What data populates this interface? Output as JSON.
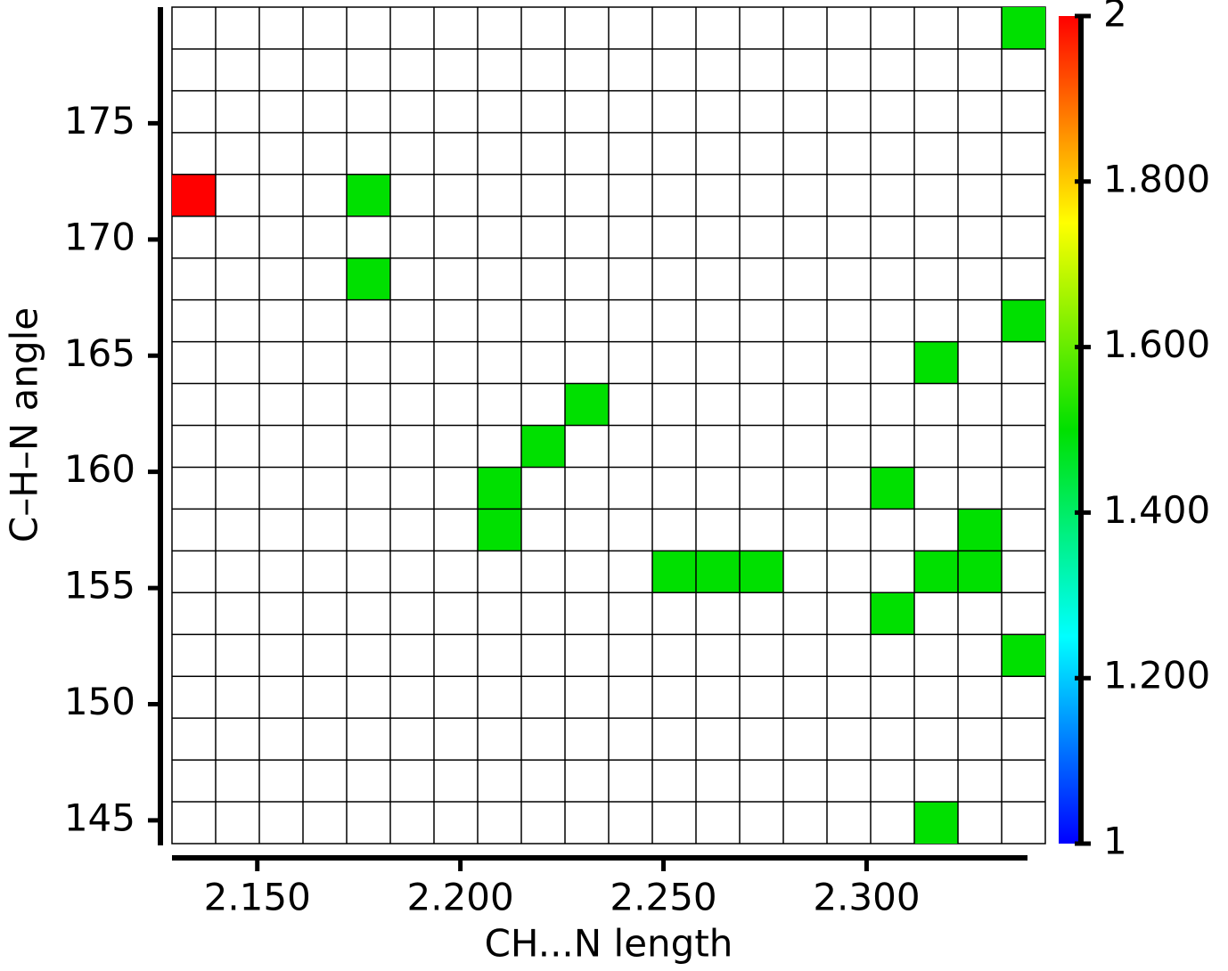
{
  "chart_data": {
    "type": "heatmap2d",
    "x_label": "CH...N length",
    "y_label": "C–H–N angle",
    "xlim": [
      2.129,
      2.344
    ],
    "ylim": [
      144,
      180
    ],
    "bins": [
      20,
      20
    ],
    "xticks": [
      {
        "value": 2.15,
        "label": "2.150"
      },
      {
        "value": 2.2,
        "label": "2.200"
      },
      {
        "value": 2.25,
        "label": "2.250"
      },
      {
        "value": 2.3,
        "label": "2.300"
      }
    ],
    "yticks": [
      145,
      150,
      155,
      160,
      165,
      170,
      175
    ],
    "clim": [
      1,
      2
    ],
    "cticks": [
      1,
      {
        "value": 1.2,
        "label": "1.200"
      },
      {
        "value": 1.4,
        "label": "1.400"
      },
      {
        "value": 1.6,
        "label": "1.600"
      },
      {
        "value": 1.8,
        "label": "1.800"
      },
      2
    ],
    "colorscale": [
      "#0000ff",
      "#00ffff",
      "#00e000",
      "#ffff00",
      "#ff0000"
    ],
    "cells": [
      {
        "x": 2.339,
        "y": 179.1,
        "value": 1.5
      },
      {
        "x": 2.135,
        "y": 171.9,
        "value": 2
      },
      {
        "x": 2.178,
        "y": 171.9,
        "value": 1.5
      },
      {
        "x": 2.178,
        "y": 168.3,
        "value": 1.5
      },
      {
        "x": 2.339,
        "y": 166.5,
        "value": 1.5
      },
      {
        "x": 2.317,
        "y": 164.7,
        "value": 1.5
      },
      {
        "x": 2.231,
        "y": 162.9,
        "value": 1.5
      },
      {
        "x": 2.22,
        "y": 161.1,
        "value": 1.5
      },
      {
        "x": 2.21,
        "y": 159.3,
        "value": 1.5
      },
      {
        "x": 2.306,
        "y": 159.3,
        "value": 1.5
      },
      {
        "x": 2.21,
        "y": 157.5,
        "value": 1.5
      },
      {
        "x": 2.328,
        "y": 157.5,
        "value": 1.5
      },
      {
        "x": 2.253,
        "y": 155.7,
        "value": 1.5
      },
      {
        "x": 2.263,
        "y": 155.7,
        "value": 1.5
      },
      {
        "x": 2.274,
        "y": 155.7,
        "value": 1.5
      },
      {
        "x": 2.317,
        "y": 155.7,
        "value": 1.5
      },
      {
        "x": 2.328,
        "y": 155.7,
        "value": 1.5
      },
      {
        "x": 2.306,
        "y": 153.9,
        "value": 1.5
      },
      {
        "x": 2.339,
        "y": 152.1,
        "value": 1.5
      },
      {
        "x": 2.317,
        "y": 144.9,
        "value": 1.5
      }
    ]
  }
}
